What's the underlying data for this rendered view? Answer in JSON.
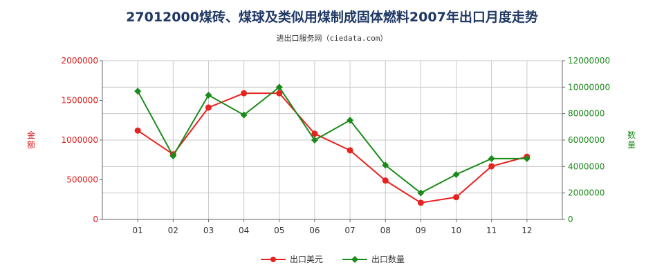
{
  "chart_data": {
    "type": "line",
    "title": "27012000煤砖、煤球及类似用煤制成固体燃料2007年出口月度走势",
    "subtitle": "进出口服务网（ciedata.com）",
    "categories": [
      "01",
      "02",
      "03",
      "04",
      "05",
      "06",
      "07",
      "08",
      "09",
      "10",
      "11",
      "12"
    ],
    "y_left": {
      "label": "金额",
      "ylim": [
        0,
        2000000
      ],
      "ticks": [
        "0",
        "500000",
        "1000000",
        "1500000",
        "2000000"
      ],
      "color": "#dd1c1c"
    },
    "y_right": {
      "label": "数量",
      "ylim": [
        0,
        12000000
      ],
      "ticks": [
        "0",
        "2000000",
        "4000000",
        "6000000",
        "8000000",
        "10000000",
        "12000000"
      ],
      "color": "#1a8a1a"
    },
    "series": [
      {
        "name": "出口美元",
        "axis": "left",
        "color": "#e8221f",
        "marker": "circle",
        "values": [
          1120000,
          820000,
          1410000,
          1590000,
          1590000,
          1080000,
          870000,
          490000,
          210000,
          280000,
          670000,
          790000
        ]
      },
      {
        "name": "出口数量",
        "axis": "right",
        "color": "#1a8a1a",
        "marker": "diamond",
        "values": [
          9700000,
          4800000,
          9400000,
          7900000,
          10000000,
          6000000,
          7500000,
          4100000,
          2000000,
          3400000,
          4600000,
          4600000
        ]
      }
    ],
    "grid": true,
    "legend": "bottom-center"
  }
}
